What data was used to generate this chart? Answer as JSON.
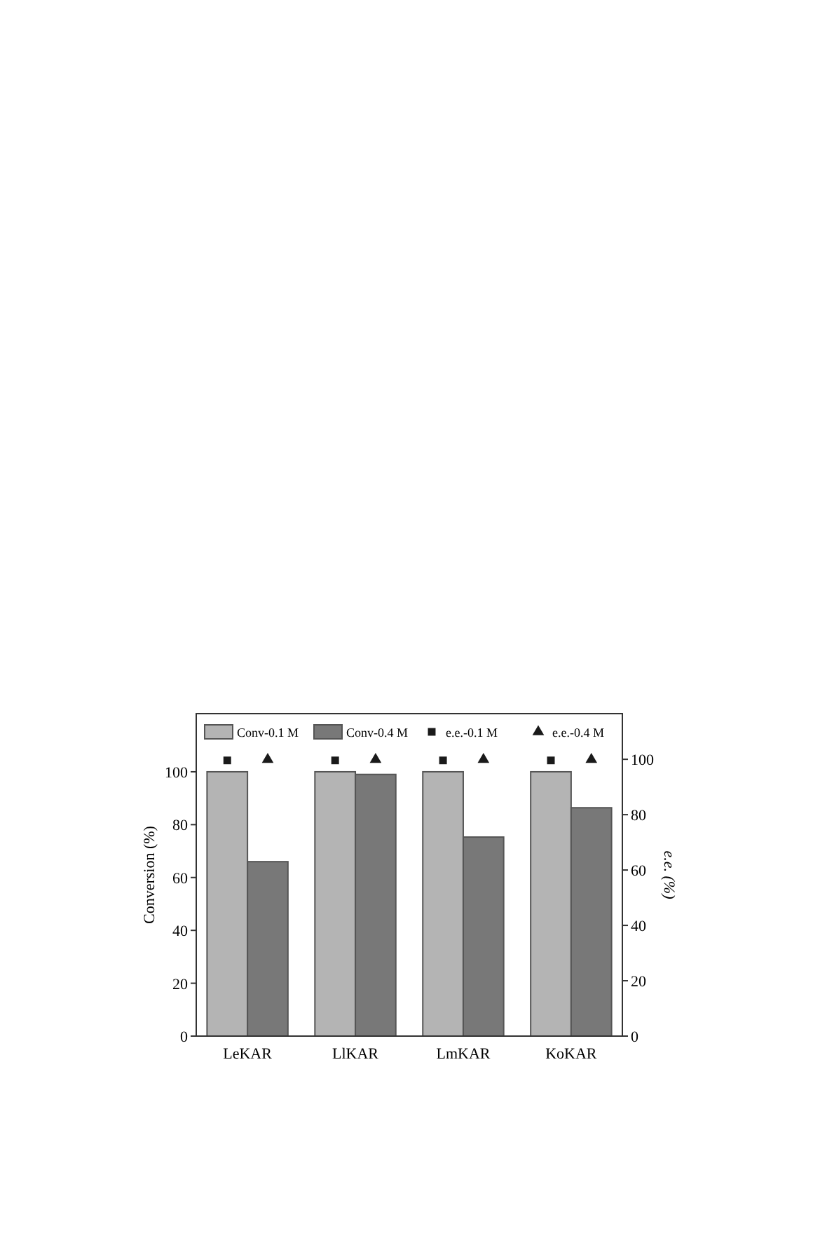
{
  "chart_data": {
    "type": "bar",
    "categories": [
      "LeKAR",
      "LlKAR",
      "LmKAR",
      "KoKAR"
    ],
    "ylabel": "Conversion (%)",
    "y2label": "e.e. (%)",
    "ylim": [
      0,
      122
    ],
    "yticks": [
      0,
      20,
      40,
      60,
      80,
      100
    ],
    "y2lim": [
      0,
      116.5
    ],
    "y2ticks": [
      0,
      20,
      40,
      60,
      80,
      100
    ],
    "legend": "top",
    "grid": false,
    "series": [
      {
        "name": "Conv-0.1 M",
        "color": "#b4b4b4",
        "values": [
          100,
          100,
          100,
          100
        ]
      },
      {
        "name": "Conv-0.4 M",
        "color": "#787878",
        "values": [
          66,
          99,
          75.3,
          86.4
        ]
      },
      {
        "name": "e.e.-0.1 M",
        "type": "scatter",
        "marker": "square",
        "axis": "y2",
        "color": "#1a1a1a",
        "x": [
          "LeKAR",
          "LlKAR",
          "LmKAR",
          "KoKAR"
        ],
        "values": [
          99.6,
          99.6,
          99.6,
          99.6
        ]
      },
      {
        "name": "e.e.-0.4 M",
        "type": "scatter",
        "marker": "triangle",
        "axis": "y2",
        "color": "#1a1a1a",
        "x": [
          "LeKAR",
          "LlKAR",
          "LmKAR",
          "KoKAR"
        ],
        "values": [
          99.9,
          99.9,
          99.9,
          99.9
        ]
      }
    ]
  }
}
